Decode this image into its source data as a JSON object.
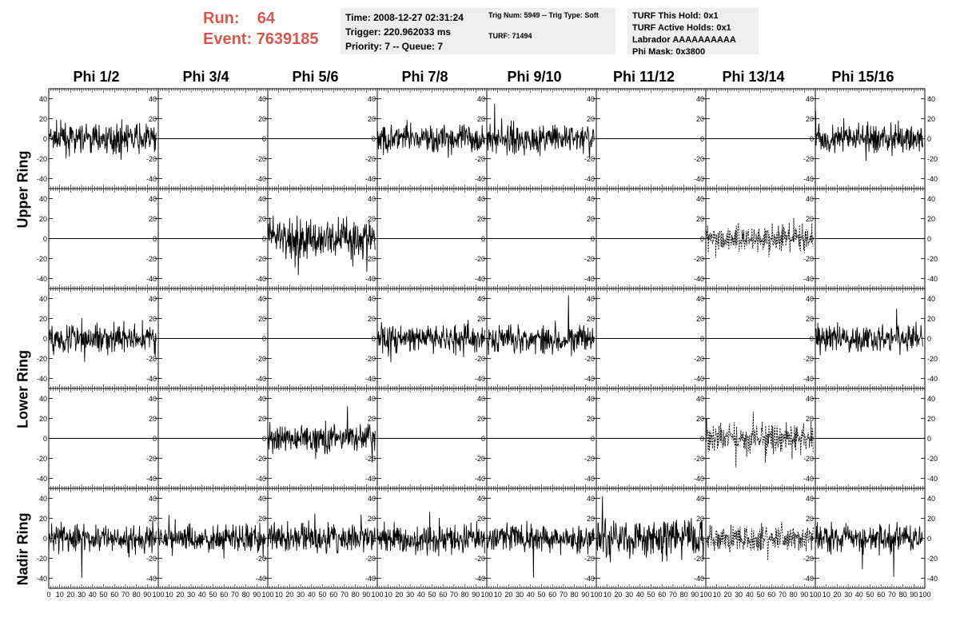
{
  "header": {
    "run_label": "Run:",
    "run_value": "64",
    "event_label": "Event:",
    "event_value": "7639185"
  },
  "info": {
    "time": "Time: 2008-12-27 02:31:24",
    "trigger": "Trigger: 220.962033 ms",
    "priority": "Priority: 7 -- Queue: 7",
    "trig_num": "Trig Num: 5949 -- Trig Type: Soft",
    "turf": "TURF: 71494",
    "turf_this_hold": "TURF This Hold: 0x1",
    "turf_active_holds": "TURF Active Holds: 0x1",
    "labrador": "Labrador AAAAAAAAAA",
    "phi_mask": "Phi Mask: 0x3800"
  },
  "columns": [
    "Phi 1/2",
    "Phi 3/4",
    "Phi 5/6",
    "Phi 7/8",
    "Phi 9/10",
    "Phi 11/12",
    "Phi 13/14",
    "Phi 15/16"
  ],
  "rows": [
    "Upper Ring",
    "Lower Ring",
    "Nadir Ring"
  ],
  "chart_data": {
    "type": "line",
    "grid": false,
    "xlim": [
      0,
      100
    ],
    "ylim": [
      -50,
      50
    ],
    "yticks": [
      -40,
      -20,
      0,
      20,
      40
    ],
    "xticks": [
      0,
      10,
      20,
      30,
      40,
      50,
      60,
      70,
      80,
      90,
      100
    ],
    "ytick_labels": [
      "-40",
      "-20",
      "0",
      "20",
      "40"
    ],
    "xtick_labels": [
      "0",
      "10",
      "20",
      "30",
      "40",
      "50",
      "60",
      "70",
      "80",
      "90",
      "100"
    ],
    "panels": [
      [
        "noise-mid",
        "flat",
        "flat",
        "noise-mid",
        "noise-mid",
        "flat",
        "flat",
        "noise-mid"
      ],
      [
        "flat",
        "flat",
        "noise-big",
        "flat",
        "flat",
        "flat",
        "dashed",
        "flat"
      ],
      [
        "noise-mid",
        "flat",
        "flat",
        "noise-mid",
        "noise-mid",
        "flat",
        "flat",
        "noise-mid"
      ],
      [
        "flat",
        "flat",
        "noise-mid",
        "flat",
        "flat",
        "flat",
        "dashed",
        "flat"
      ],
      [
        "noise-mid",
        "noise-mid",
        "noise-mid",
        "noise-mid",
        "noise-mid",
        "noise-big",
        "dashed",
        "noise-mid"
      ]
    ]
  }
}
